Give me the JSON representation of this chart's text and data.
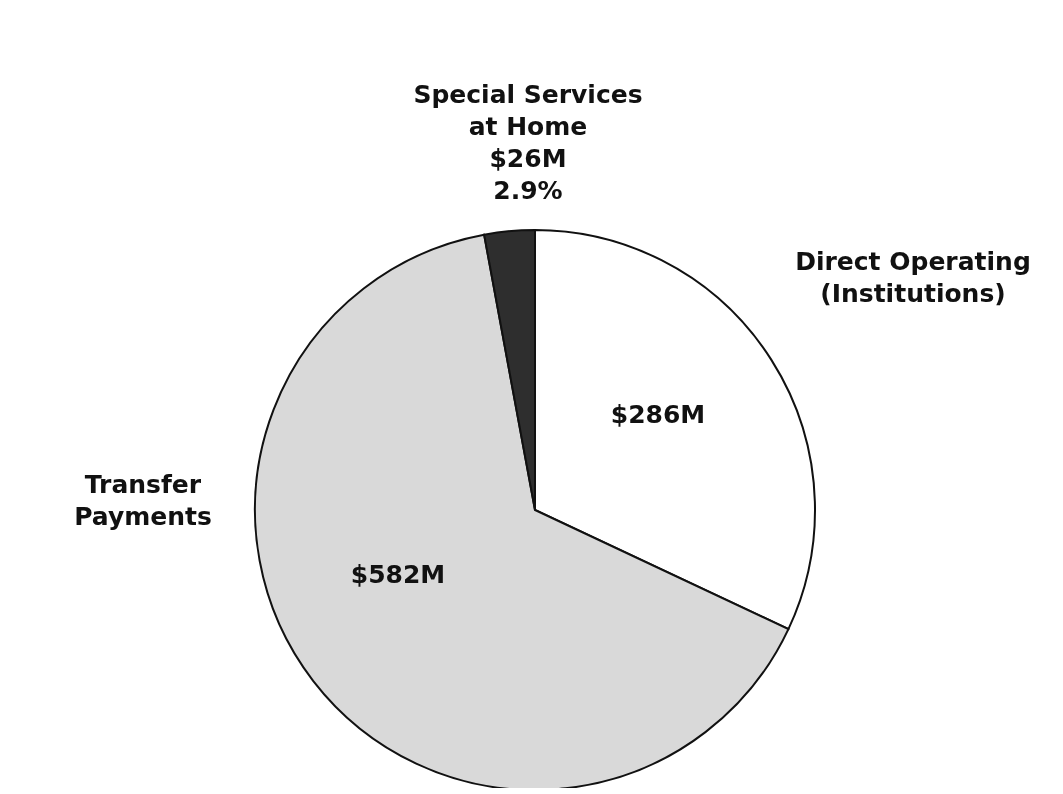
{
  "chart_data": {
    "type": "pie",
    "categories": [
      "Direct Operating (Institutions)",
      "Transfer Payments",
      "Special Services at Home"
    ],
    "values": [
      286,
      582,
      26
    ],
    "value_labels": [
      "$286M",
      "$582M",
      "$26M"
    ],
    "annotations": [
      "2.9%"
    ],
    "colors": [
      "#ffffff",
      "#d9d9d9",
      "#2e2e2e"
    ]
  }
}
